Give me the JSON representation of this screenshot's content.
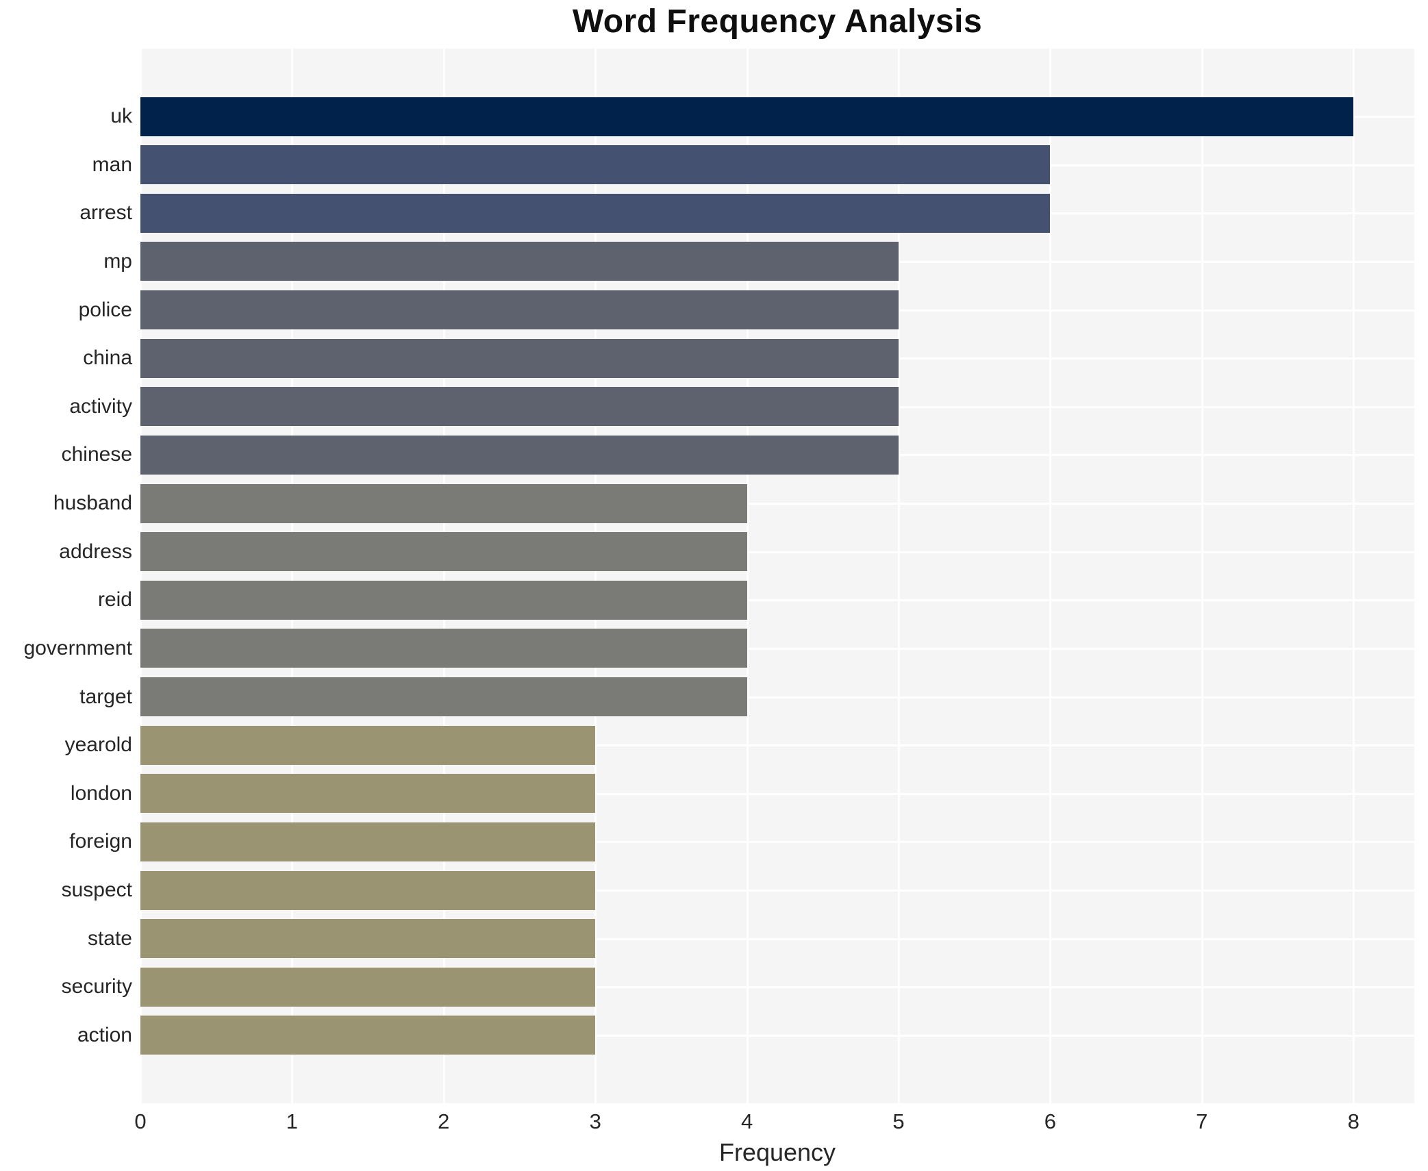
{
  "chart_data": {
    "type": "bar",
    "orientation": "horizontal",
    "title": "Word Frequency Analysis",
    "xlabel": "Frequency",
    "ylabel": "",
    "categories": [
      "uk",
      "man",
      "arrest",
      "mp",
      "police",
      "china",
      "activity",
      "chinese",
      "husband",
      "address",
      "reid",
      "government",
      "target",
      "yearold",
      "london",
      "foreign",
      "suspect",
      "state",
      "security",
      "action"
    ],
    "values": [
      8,
      6,
      6,
      5,
      5,
      5,
      5,
      5,
      4,
      4,
      4,
      4,
      4,
      3,
      3,
      3,
      3,
      3,
      3,
      3
    ],
    "xticks": [
      0,
      1,
      2,
      3,
      4,
      5,
      6,
      7,
      8
    ],
    "xlim": [
      0,
      8.4
    ],
    "grid": true,
    "legend": false,
    "colors": {
      "plot_background": "#f5f5f6",
      "grid_color": "#ffffff",
      "bar_color_by_value": {
        "8": "#01224a",
        "6": "#455170",
        "5": "#5d626e",
        "4": "#7a7a77",
        "3": "#9a9473"
      },
      "title_color": "#0f0f0f",
      "tick_label_color": "#262626"
    }
  }
}
